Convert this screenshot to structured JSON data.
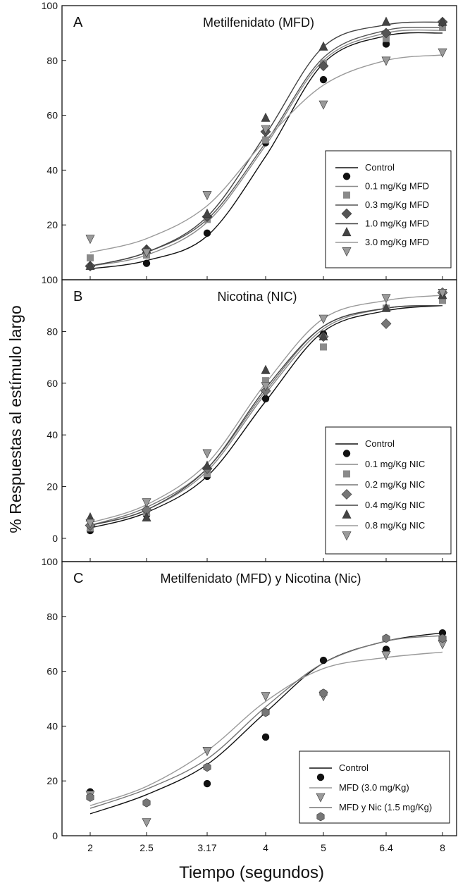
{
  "figure": {
    "ylabel": "% Respuestas al estímulo largo",
    "xlabel": "Tiempo (segundos)",
    "x_tick_labels": [
      "2",
      "2.5",
      "3.17",
      "4",
      "5",
      "6.4",
      "8"
    ]
  },
  "chart_data": [
    {
      "type": "scatter",
      "panel": "A",
      "title": "Metilfenidato (MFD)",
      "xlabel": "Tiempo (segundos)",
      "ylabel": "% Respuestas al estímulo largo",
      "categories": [
        "2",
        "2.5",
        "3.17",
        "4",
        "5",
        "6.4",
        "8"
      ],
      "yticks": [
        20,
        40,
        60,
        80,
        100
      ],
      "ylim": [
        0,
        100
      ],
      "series": [
        {
          "name": "Control",
          "marker": "circle",
          "color": "#111111",
          "values": [
            5,
            6,
            17,
            50,
            73,
            86,
            93
          ],
          "fit": [
            4,
            7,
            16,
            45,
            79,
            89,
            90
          ]
        },
        {
          "name": "0.1 mg/Kg MFD",
          "marker": "square",
          "color": "#8a8a8a",
          "values": [
            8,
            9,
            22,
            51,
            79,
            88,
            92
          ],
          "fit": [
            5,
            9,
            21,
            49,
            80,
            90,
            91
          ]
        },
        {
          "name": "0.3 mg/Kg MFD",
          "marker": "diamond",
          "color": "#555555",
          "values": [
            5,
            11,
            23,
            54,
            78,
            90,
            94
          ],
          "fit": [
            5,
            10,
            22,
            50,
            81,
            91,
            92
          ]
        },
        {
          "name": "1.0 mg/Kg MFD",
          "marker": "triangle-up",
          "color": "#444444",
          "values": [
            5,
            11,
            24,
            59,
            85,
            94,
            94
          ],
          "fit": [
            5,
            10,
            23,
            53,
            85,
            93,
            94
          ]
        },
        {
          "name": "3.0 mg/Kg MFD",
          "marker": "triangle-down",
          "color": "#9a9a9a",
          "values": [
            15,
            10,
            31,
            55,
            64,
            80,
            83
          ],
          "fit": [
            10,
            15,
            27,
            51,
            71,
            80,
            82
          ]
        }
      ]
    },
    {
      "type": "scatter",
      "panel": "B",
      "title": "Nicotina (NIC)",
      "xlabel": "Tiempo (segundos)",
      "ylabel": "% Respuestas al estímulo largo",
      "categories": [
        "2",
        "2.5",
        "3.17",
        "4",
        "5",
        "6.4",
        "8"
      ],
      "yticks": [
        0,
        20,
        40,
        60,
        80,
        100
      ],
      "ylim": [
        -9,
        100
      ],
      "series": [
        {
          "name": "Control",
          "marker": "circle",
          "color": "#111111",
          "values": [
            3,
            9,
            24,
            54,
            79,
            89,
            93
          ],
          "fit": [
            4,
            10,
            24,
            53,
            80,
            88,
            90
          ]
        },
        {
          "name": "0.1 mg/Kg NIC",
          "marker": "square",
          "color": "#8a8a8a",
          "values": [
            4,
            10,
            25,
            61,
            74,
            89,
            92
          ],
          "fit": [
            5,
            11,
            26,
            56,
            81,
            89,
            90
          ]
        },
        {
          "name": "0.2 mg/Kg NIC",
          "marker": "diamond",
          "color": "#777777",
          "values": [
            5,
            11,
            27,
            57,
            78,
            83,
            95
          ],
          "fit": [
            5,
            12,
            27,
            57,
            82,
            89,
            90
          ]
        },
        {
          "name": "0.4 mg/Kg NIC",
          "marker": "triangle-up",
          "color": "#444444",
          "values": [
            8,
            8,
            28,
            65,
            78,
            89,
            94
          ],
          "fit": [
            5,
            11,
            27,
            58,
            82,
            89,
            90
          ]
        },
        {
          "name": "0.8 mg/Kg NIC",
          "marker": "triangle-down",
          "color": "#9a9a9a",
          "values": [
            6,
            14,
            33,
            59,
            85,
            93,
            95
          ],
          "fit": [
            6,
            13,
            29,
            60,
            85,
            92,
            94
          ]
        }
      ]
    },
    {
      "type": "scatter",
      "panel": "C",
      "title": "Metilfenidato (MFD) y Nicotina (Nic)",
      "xlabel": "Tiempo (segundos)",
      "ylabel": "% Respuestas al estímulo largo",
      "categories": [
        "2",
        "2.5",
        "3.17",
        "4",
        "5",
        "6.4",
        "8"
      ],
      "yticks": [
        0,
        20,
        40,
        60,
        80,
        100
      ],
      "ylim": [
        0,
        100
      ],
      "series": [
        {
          "name": "Control",
          "marker": "circle",
          "color": "#111111",
          "values": [
            16,
            12,
            19,
            36,
            64,
            68,
            74
          ],
          "fit": [
            8,
            15,
            26,
            45,
            63,
            71,
            74
          ]
        },
        {
          "name": "MFD (3.0 mg/Kg)",
          "marker": "triangle-down",
          "color": "#9a9a9a",
          "values": [
            15,
            5,
            31,
            51,
            51,
            66,
            70
          ],
          "fit": [
            11,
            18,
            31,
            49,
            61,
            65,
            67
          ]
        },
        {
          "name": "MFD y Nic (1.5 mg/Kg)",
          "marker": "hexagon",
          "color": "#777777",
          "values": [
            14,
            12,
            25,
            45,
            52,
            72,
            72
          ],
          "fit": [
            10,
            17,
            28,
            47,
            63,
            71,
            73
          ]
        }
      ]
    }
  ]
}
